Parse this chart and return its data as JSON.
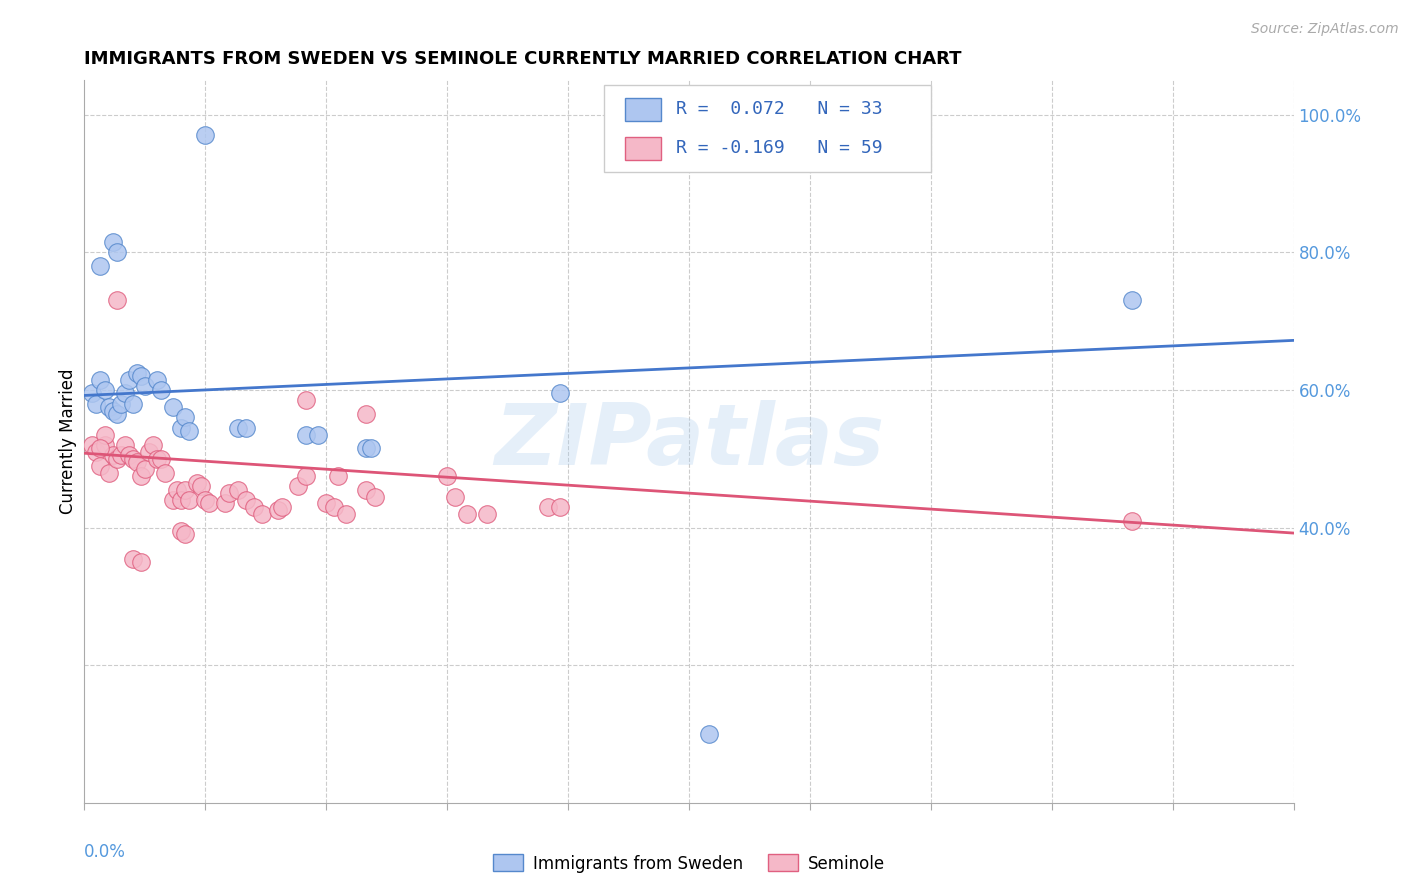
{
  "title": "IMMIGRANTS FROM SWEDEN VS SEMINOLE CURRENTLY MARRIED CORRELATION CHART",
  "source": "Source: ZipAtlas.com",
  "ylabel": "Currently Married",
  "legend_blue_R": "R =  0.072",
  "legend_blue_N": "N = 33",
  "legend_pink_R": "R = -0.169",
  "legend_pink_N": "N = 59",
  "legend_label_blue": "Immigrants from Sweden",
  "legend_label_pink": "Seminole",
  "blue_color": "#aec6f0",
  "pink_color": "#f5b8c8",
  "blue_edge_color": "#5588cc",
  "pink_edge_color": "#e06080",
  "blue_line_color": "#4477cc",
  "pink_line_color": "#dd5577",
  "legend_text_color": "#3366bb",
  "right_axis_color": "#5599dd",
  "watermark": "ZIPatlas",
  "blue_scatter": [
    [
      0.002,
      0.595
    ],
    [
      0.004,
      0.615
    ],
    [
      0.003,
      0.58
    ],
    [
      0.005,
      0.6
    ],
    [
      0.006,
      0.575
    ],
    [
      0.007,
      0.57
    ],
    [
      0.008,
      0.565
    ],
    [
      0.009,
      0.58
    ],
    [
      0.01,
      0.595
    ],
    [
      0.011,
      0.615
    ],
    [
      0.012,
      0.58
    ],
    [
      0.013,
      0.625
    ],
    [
      0.014,
      0.62
    ],
    [
      0.015,
      0.605
    ],
    [
      0.018,
      0.615
    ],
    [
      0.019,
      0.6
    ],
    [
      0.022,
      0.575
    ],
    [
      0.024,
      0.545
    ],
    [
      0.025,
      0.56
    ],
    [
      0.026,
      0.54
    ],
    [
      0.038,
      0.545
    ],
    [
      0.04,
      0.545
    ],
    [
      0.055,
      0.535
    ],
    [
      0.058,
      0.535
    ],
    [
      0.07,
      0.515
    ],
    [
      0.071,
      0.515
    ],
    [
      0.118,
      0.595
    ],
    [
      0.03,
      0.97
    ],
    [
      0.004,
      0.78
    ],
    [
      0.007,
      0.815
    ],
    [
      0.008,
      0.8
    ],
    [
      0.26,
      0.73
    ],
    [
      0.155,
      0.1
    ]
  ],
  "pink_scatter": [
    [
      0.002,
      0.52
    ],
    [
      0.003,
      0.51
    ],
    [
      0.004,
      0.49
    ],
    [
      0.005,
      0.52
    ],
    [
      0.006,
      0.48
    ],
    [
      0.007,
      0.505
    ],
    [
      0.008,
      0.5
    ],
    [
      0.009,
      0.505
    ],
    [
      0.01,
      0.52
    ],
    [
      0.011,
      0.505
    ],
    [
      0.012,
      0.5
    ],
    [
      0.013,
      0.495
    ],
    [
      0.014,
      0.475
    ],
    [
      0.015,
      0.485
    ],
    [
      0.016,
      0.51
    ],
    [
      0.017,
      0.52
    ],
    [
      0.018,
      0.5
    ],
    [
      0.019,
      0.5
    ],
    [
      0.02,
      0.48
    ],
    [
      0.022,
      0.44
    ],
    [
      0.023,
      0.455
    ],
    [
      0.024,
      0.44
    ],
    [
      0.025,
      0.455
    ],
    [
      0.026,
      0.44
    ],
    [
      0.028,
      0.465
    ],
    [
      0.029,
      0.46
    ],
    [
      0.03,
      0.44
    ],
    [
      0.031,
      0.435
    ],
    [
      0.035,
      0.435
    ],
    [
      0.036,
      0.45
    ],
    [
      0.038,
      0.455
    ],
    [
      0.04,
      0.44
    ],
    [
      0.042,
      0.43
    ],
    [
      0.044,
      0.42
    ],
    [
      0.048,
      0.425
    ],
    [
      0.049,
      0.43
    ],
    [
      0.053,
      0.46
    ],
    [
      0.055,
      0.475
    ],
    [
      0.06,
      0.435
    ],
    [
      0.062,
      0.43
    ],
    [
      0.063,
      0.475
    ],
    [
      0.065,
      0.42
    ],
    [
      0.07,
      0.455
    ],
    [
      0.072,
      0.445
    ],
    [
      0.09,
      0.475
    ],
    [
      0.092,
      0.445
    ],
    [
      0.095,
      0.42
    ],
    [
      0.1,
      0.42
    ],
    [
      0.115,
      0.43
    ],
    [
      0.118,
      0.43
    ],
    [
      0.07,
      0.565
    ],
    [
      0.055,
      0.585
    ],
    [
      0.26,
      0.41
    ],
    [
      0.005,
      0.535
    ],
    [
      0.004,
      0.515
    ],
    [
      0.012,
      0.355
    ],
    [
      0.014,
      0.35
    ],
    [
      0.024,
      0.395
    ],
    [
      0.025,
      0.39
    ],
    [
      0.008,
      0.73
    ]
  ],
  "xlim": [
    0.0,
    0.3
  ],
  "ylim": [
    0.0,
    1.05
  ],
  "x_ticks": [
    0.0,
    0.03,
    0.06,
    0.09,
    0.12,
    0.15,
    0.18,
    0.21,
    0.24,
    0.27,
    0.3
  ],
  "y_ticks": [
    0.0,
    0.2,
    0.4,
    0.6,
    0.8,
    1.0
  ],
  "right_y_labels": [
    "",
    "40.0%",
    "60.0%",
    "80.0%",
    "100.0%"
  ],
  "blue_trend_x": [
    0.0,
    0.3
  ],
  "blue_trend_y": [
    0.592,
    0.672
  ],
  "pink_trend_x": [
    0.0,
    0.3
  ],
  "pink_trend_y": [
    0.508,
    0.392
  ]
}
